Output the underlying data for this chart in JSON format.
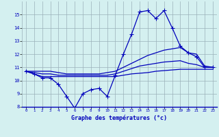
{
  "xlabel": "Graphe des températures (°c)",
  "hours": [
    0,
    1,
    2,
    3,
    4,
    5,
    6,
    7,
    8,
    9,
    10,
    11,
    12,
    13,
    14,
    15,
    16,
    17,
    18,
    19,
    20,
    21,
    22,
    23
  ],
  "temp_actual": [
    10.7,
    10.5,
    10.2,
    10.2,
    9.7,
    8.8,
    7.9,
    9.0,
    9.3,
    9.4,
    8.8,
    10.4,
    12.0,
    13.5,
    15.2,
    15.3,
    14.7,
    15.3,
    14.0,
    12.6,
    12.1,
    11.8,
    11.0,
    11.0
  ],
  "temp_upper": [
    10.7,
    10.7,
    10.7,
    10.7,
    10.6,
    10.5,
    10.5,
    10.5,
    10.5,
    10.5,
    10.6,
    10.7,
    11.0,
    11.3,
    11.6,
    11.9,
    12.1,
    12.3,
    12.4,
    12.5,
    12.1,
    12.0,
    11.1,
    11.0
  ],
  "temp_mid": [
    10.7,
    10.6,
    10.5,
    10.5,
    10.4,
    10.4,
    10.4,
    10.4,
    10.4,
    10.4,
    10.4,
    10.5,
    10.7,
    10.9,
    11.1,
    11.2,
    11.3,
    11.4,
    11.45,
    11.5,
    11.3,
    11.2,
    11.0,
    11.0
  ],
  "temp_lower": [
    10.7,
    10.5,
    10.3,
    10.3,
    10.3,
    10.3,
    10.3,
    10.3,
    10.3,
    10.3,
    10.3,
    10.3,
    10.4,
    10.5,
    10.55,
    10.6,
    10.7,
    10.75,
    10.8,
    10.85,
    10.85,
    10.85,
    10.85,
    10.85
  ],
  "ylim": [
    8,
    16
  ],
  "xlim_min": -0.5,
  "xlim_max": 23.5,
  "yticks": [
    8,
    9,
    10,
    11,
    12,
    13,
    14,
    15
  ],
  "xticks": [
    0,
    1,
    2,
    3,
    4,
    5,
    6,
    7,
    8,
    9,
    10,
    11,
    12,
    13,
    14,
    15,
    16,
    17,
    18,
    19,
    20,
    21,
    22,
    23
  ],
  "line_color": "#0000bb",
  "bg_color": "#d4f0f0",
  "grid_color": "#9ab0b8",
  "marker": "+"
}
